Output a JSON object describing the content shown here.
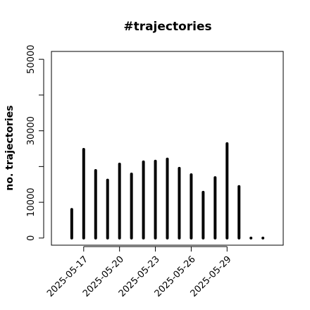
{
  "chart_data": {
    "type": "bar",
    "title": "#trajectories",
    "y_label": "no. trajectories",
    "categories": [
      null,
      "2025-05-17",
      null,
      null,
      "2025-05-20",
      null,
      null,
      "2025-05-23",
      null,
      null,
      "2025-05-26",
      null,
      null,
      "2025-05-29",
      null,
      null,
      null
    ],
    "values": [
      8000,
      24800,
      18900,
      16200,
      20700,
      17900,
      21300,
      21500,
      22100,
      19500,
      17700,
      12800,
      16900,
      26400,
      14400,
      0,
      0
    ],
    "color": "#000000",
    "ylim": [
      -2000,
      52200
    ],
    "yticks": [
      0,
      10000,
      30000,
      50000
    ],
    "yminorticks": [
      20000,
      40000
    ]
  }
}
